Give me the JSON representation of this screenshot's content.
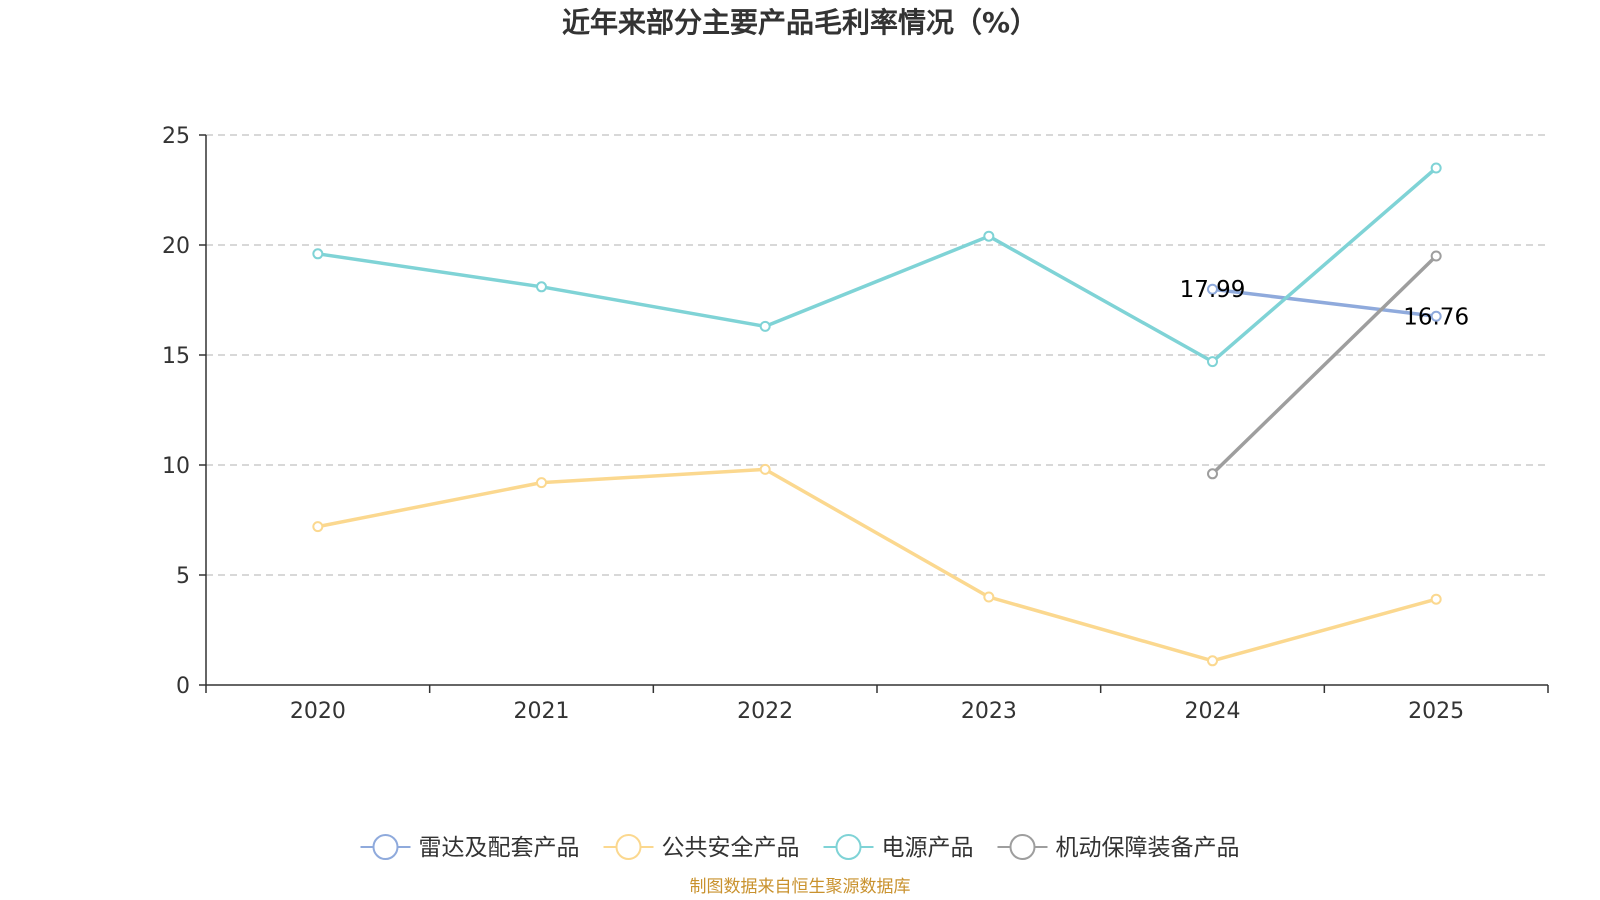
{
  "colors": {
    "radar": "#8FAADC",
    "public_safety": "#FBD88F",
    "power": "#7FD3D6",
    "mobile": "#9E9E9E",
    "source": "#C9922E",
    "axis": "#333333",
    "grid": "#cccccc"
  },
  "chart_data": {
    "type": "line",
    "title": "近年来部分主要产品毛利率情况（%）",
    "categories": [
      "2020",
      "2021",
      "2022",
      "2023",
      "2024",
      "2025"
    ],
    "ylim": [
      0,
      25
    ],
    "yticks": [
      0,
      5,
      10,
      15,
      20,
      25
    ],
    "grid": true,
    "legend_position": "bottom-center",
    "series": [
      {
        "name": "雷达及配套产品",
        "color_key": "radar",
        "values": [
          null,
          null,
          null,
          null,
          17.99,
          16.76
        ],
        "labels": [
          "",
          "",
          "",
          "",
          "17.99",
          "16.76"
        ]
      },
      {
        "name": "公共安全产品",
        "color_key": "public_safety",
        "values": [
          7.2,
          9.2,
          9.8,
          4.0,
          1.1,
          3.9
        ]
      },
      {
        "name": "电源产品",
        "color_key": "power",
        "values": [
          19.6,
          18.1,
          16.3,
          20.4,
          14.7,
          23.5
        ]
      },
      {
        "name": "机动保障装备产品",
        "color_key": "mobile",
        "values": [
          null,
          null,
          null,
          null,
          9.6,
          19.5
        ]
      }
    ]
  },
  "source_note": "制图数据来自恒生聚源数据库"
}
